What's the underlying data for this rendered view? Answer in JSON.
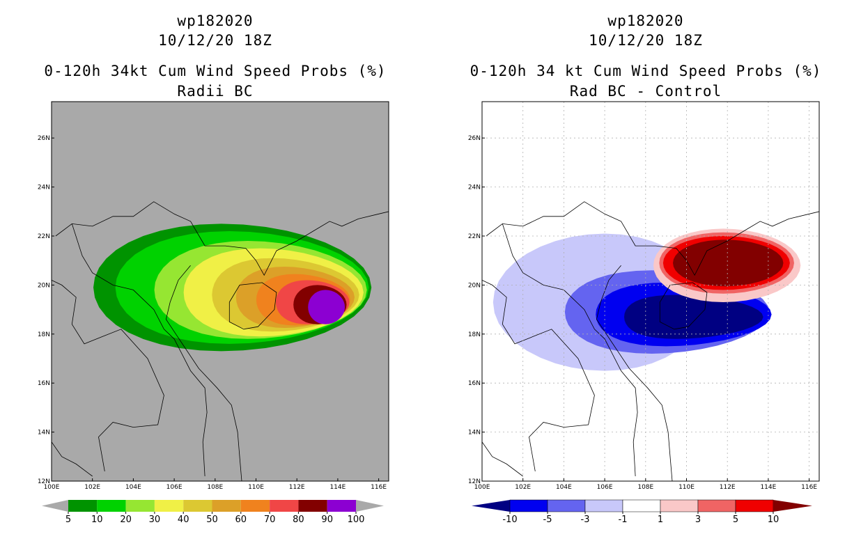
{
  "left": {
    "title1": "wp182020",
    "title2": "10/12/20 18Z",
    "title3": "0-120h 34kt Cum Wind Speed Probs (%)",
    "title4": "Radii BC",
    "colorbar": {
      "colors": [
        "#009300",
        "#00d200",
        "#96e632",
        "#f0f046",
        "#dcc832",
        "#dca028",
        "#f0821e",
        "#f04646",
        "#820000",
        "#8c00d2"
      ],
      "labels": [
        "5",
        "10",
        "20",
        "30",
        "40",
        "50",
        "60",
        "70",
        "80",
        "90",
        "100"
      ]
    }
  },
  "right": {
    "title1": "wp182020",
    "title2": "10/12/20 18Z",
    "title3": "0-120h 34 kt Cum Wind Speed Probs (%)",
    "title4": "Rad BC - Control",
    "colorbar": {
      "colors": [
        "#000082",
        "#0000f0",
        "#6464f0",
        "#c8c8fa",
        "#ffffff",
        "#fac8c8",
        "#f06464",
        "#f00000",
        "#820000"
      ],
      "labels": [
        "-10",
        "-5",
        "-3",
        "-1",
        "1",
        "3",
        "5",
        "10"
      ]
    }
  },
  "axes": {
    "lon_ticks": [
      "100E",
      "102E",
      "104E",
      "106E",
      "108E",
      "110E",
      "112E",
      "114E",
      "116E"
    ],
    "lat_ticks": [
      "12N",
      "14N",
      "16N",
      "18N",
      "20N",
      "22N",
      "24N",
      "26N"
    ],
    "lon_range": [
      100,
      116.5
    ],
    "lat_range": [
      12,
      27.5
    ]
  }
}
